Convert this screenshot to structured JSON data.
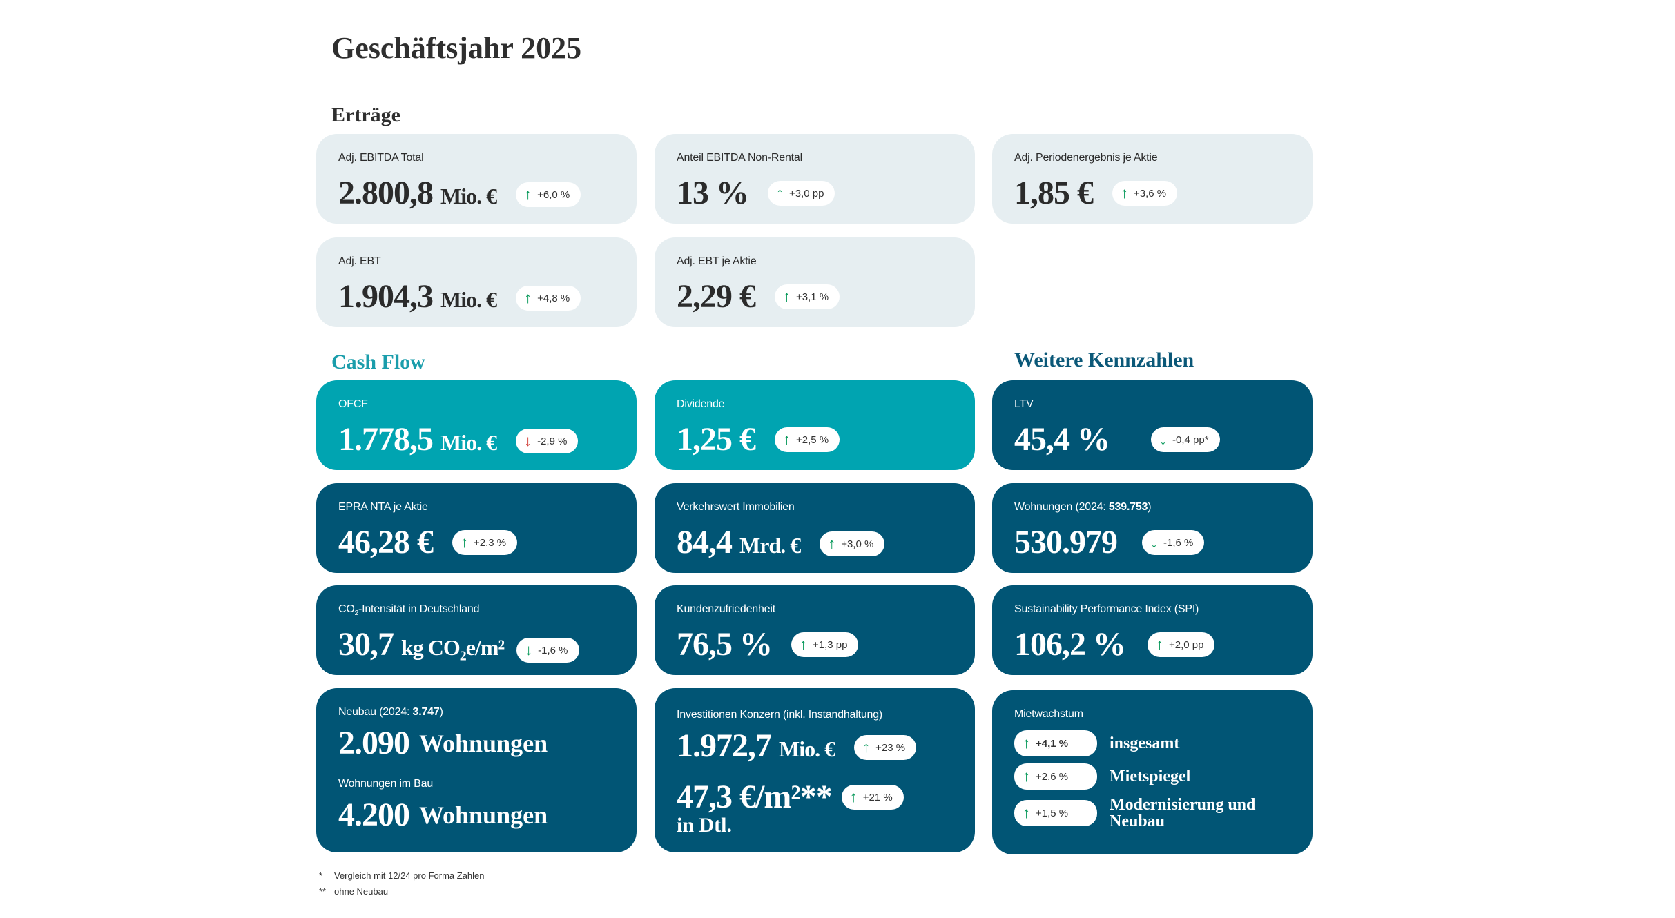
{
  "title": "Geschäftsjahr 2025",
  "colors": {
    "light_card": "#e6eef1",
    "teal_card": "#00a4b1",
    "dark_card": "#015575",
    "up_arrow": "#0a9a5c",
    "down_arrow_red": "#d2403a"
  },
  "sections": {
    "ertraege": "Erträge",
    "cashflow": "Cash Flow",
    "weitere": "Weitere Kennzahlen"
  },
  "cards": {
    "ebitda": {
      "label": "Adj. EBITDA Total",
      "value": "2.800,8",
      "unit": "Mio. €",
      "change": "+6,0 %",
      "dir": "up"
    },
    "nonrental": {
      "label": "Anteil EBITDA Non-Rental",
      "value": "13 %",
      "change": "+3,0 pp",
      "dir": "up"
    },
    "periodenergebnis": {
      "label": "Adj. Periodenergebnis je Aktie",
      "value": "1,85 €",
      "change": "+3,6 %",
      "dir": "up"
    },
    "ebt": {
      "label": "Adj. EBT",
      "value": "1.904,3",
      "unit": "Mio. €",
      "change": "+4,8 %",
      "dir": "up"
    },
    "ebt_aktie": {
      "label": "Adj. EBT je Aktie",
      "value": "2,29 €",
      "change": "+3,1 %",
      "dir": "up"
    },
    "ofcf": {
      "label": "OFCF",
      "value": "1.778,5",
      "unit": "Mio. €",
      "change": "-2,9 %",
      "dir": "down"
    },
    "dividende": {
      "label": "Dividende",
      "value": "1,25 €",
      "change": "+2,5 %",
      "dir": "up"
    },
    "ltv": {
      "label": "LTV",
      "value": "45,4 %",
      "change": "-0,4 pp*",
      "dir": "down"
    },
    "epra": {
      "label": "EPRA NTA je Aktie",
      "value": "46,28 €",
      "change": "+2,3 %",
      "dir": "up"
    },
    "verkehrswert": {
      "label": "Verkehrswert Immobilien",
      "value": "84,4",
      "unit": "Mrd. €",
      "change": "+3,0 %",
      "dir": "up"
    },
    "wohnungen": {
      "label": "Wohnungen (2024: ",
      "label_bold": "539.753",
      "label_end": ")",
      "value": "530.979",
      "change": "-1,6 %",
      "dir": "down"
    },
    "co2": {
      "label": "CO",
      "label_sub": "2",
      "label_end": "-Intensität in Deutschland",
      "value": "30,7",
      "unit": "kg CO",
      "unit_sub": "2",
      "unit_end": "e/m²",
      "change": "-1,6 %",
      "dir": "down"
    },
    "kunden": {
      "label": "Kundenzufriedenheit",
      "value": "76,5 %",
      "change": "+1,3 pp",
      "dir": "up"
    },
    "spi": {
      "label": "Sustainability Performance Index (SPI)",
      "value": "106,2 %",
      "change": "+2,0 pp",
      "dir": "up"
    },
    "neubau": {
      "label": "Neubau (2024: ",
      "label_bold": "3.747",
      "label_end": ")",
      "value": "2.090",
      "unit": "Wohnungen",
      "label2": "Wohnungen im Bau",
      "value2": "4.200",
      "unit2": "Wohnungen"
    },
    "invest": {
      "label": "Investitionen Konzern (inkl. Instandhaltung)",
      "value": "1.972,7",
      "unit": "Mio. €",
      "change": "+23 %",
      "value2": "47,3 €/m²**",
      "value2_sub": "in Dtl.",
      "change2": "+21 %"
    },
    "miet": {
      "label": "Mietwachstum",
      "items": [
        {
          "change": "+4,1 %",
          "text": "insgesamt"
        },
        {
          "change": "+2,6 %",
          "text": "Mietspiegel"
        },
        {
          "change": "+1,5 %",
          "text": "Modernisierung und Neubau"
        }
      ]
    }
  },
  "footnotes": [
    {
      "mark": "*",
      "text": "Vergleich mit 12/24 pro Forma Zahlen"
    },
    {
      "mark": "**",
      "text": "ohne Neubau"
    }
  ],
  "icons": {
    "up": "↑",
    "down": "↓"
  }
}
